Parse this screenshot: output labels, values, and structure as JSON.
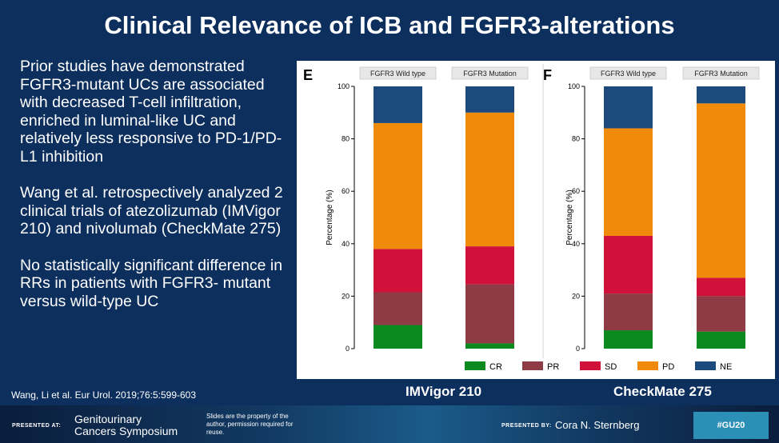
{
  "title": "Clinical Relevance of ICB and FGFR3-alterations",
  "bullets": [
    "Prior studies have demonstrated FGFR3-mutant UCs are associated with decreased T-cell infiltration, enriched in luminal-like UC and relatively less responsive to PD-1/PD-L1 inhibition",
    "Wang et al. retrospectively analyzed 2 clinical trials of atezolizumab (IMVigor 210) and nivolumab (CheckMate 275)",
    "No statistically significant difference in RRs in patients with FGFR3- mutant versus wild-type UC"
  ],
  "citation": "Wang, Li et al. Eur Urol. 2019;76:5:599-603",
  "captions": [
    "IMVigor 210",
    "CheckMate 275"
  ],
  "colors": {
    "CR": "#0a8a1e",
    "PR": "#8f3b45",
    "SD": "#d0113a",
    "PD": "#ef8a0b",
    "NE": "#1c4a7c"
  },
  "chart_data": [
    {
      "type": "bar",
      "stacked": true,
      "panel_label": "E",
      "categories": [
        "FGFR3 Wild type",
        "FGFR3 Mutation"
      ],
      "ylabel": "Percentage (%)",
      "ylim": [
        0,
        100
      ],
      "yticks": [
        "0",
        "20",
        "40",
        "60",
        "80",
        "100"
      ],
      "series": [
        {
          "name": "CR",
          "values": [
            9,
            2
          ]
        },
        {
          "name": "PR",
          "values": [
            12.5,
            22.5
          ]
        },
        {
          "name": "SD",
          "values": [
            16.5,
            14.5
          ]
        },
        {
          "name": "PD",
          "values": [
            48,
            51
          ]
        },
        {
          "name": "NE",
          "values": [
            14,
            10
          ]
        }
      ]
    },
    {
      "type": "bar",
      "stacked": true,
      "panel_label": "F",
      "categories": [
        "FGFR3 Wild type",
        "FGFR3 Mutation"
      ],
      "ylabel": "Percentage (%)",
      "ylim": [
        0,
        100
      ],
      "yticks": [
        "0",
        "20",
        "40",
        "60",
        "80",
        "100"
      ],
      "series": [
        {
          "name": "CR",
          "values": [
            7,
            6.5
          ]
        },
        {
          "name": "PR",
          "values": [
            14,
            13.5
          ]
        },
        {
          "name": "SD",
          "values": [
            22,
            7
          ]
        },
        {
          "name": "PD",
          "values": [
            41,
            66.5
          ]
        },
        {
          "name": "NE",
          "values": [
            16,
            6.5
          ]
        }
      ]
    }
  ],
  "legend": [
    "CR",
    "PR",
    "SD",
    "PD",
    "NE"
  ],
  "footer": {
    "presented_at": "PRESENTED AT:",
    "symposium": "Genitourinary Cancers Symposium",
    "copyright": "Slides are the property of the author, permission required for reuse.",
    "presented_by": "PRESENTED BY:",
    "presenter": "Cora N. Sternberg",
    "hashtag": "#GU20"
  }
}
